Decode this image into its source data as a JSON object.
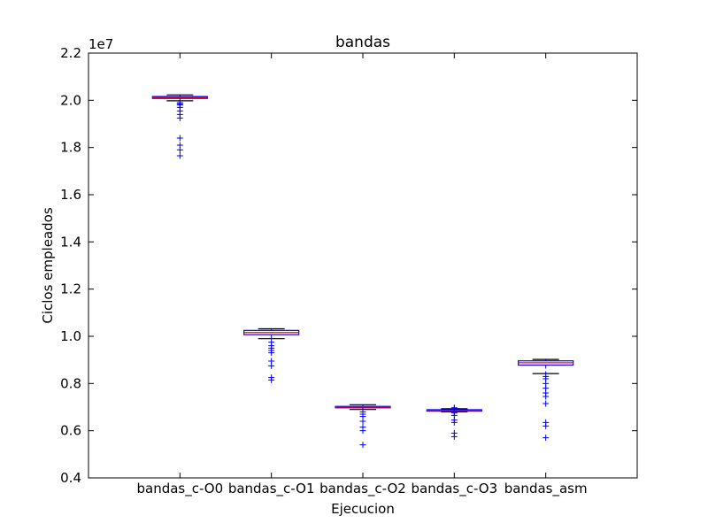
{
  "chart_data": {
    "type": "box",
    "title": "bandas",
    "xlabel": "Ejecucion",
    "ylabel": "Ciclos empleados",
    "y_offset_label": "1e7",
    "ylim": [
      0.4,
      2.2
    ],
    "yticks": [
      0.4,
      0.6,
      0.8,
      1.0,
      1.2,
      1.4,
      1.6,
      1.8,
      2.0,
      2.2
    ],
    "ytick_labels": [
      "0.4",
      "0.6",
      "0.8",
      "1.0",
      "1.2",
      "1.4",
      "1.6",
      "1.8",
      "2.0",
      "2.2"
    ],
    "grid": false,
    "colors": {
      "box": "#0000ff",
      "median": "#ff0000",
      "whisker": "#000000",
      "flier": "#0000ff"
    },
    "boxes": [
      {
        "label": "bandas_c-O0",
        "q1": 2.008,
        "median": 2.012,
        "q3": 2.016,
        "whisker_low": 1.998,
        "whisker_high": 2.023,
        "fliers": [
          1.99,
          1.985,
          1.98,
          1.97,
          1.955,
          1.94,
          1.925,
          1.84,
          1.81,
          1.79,
          1.765
        ]
      },
      {
        "label": "bandas_c-O1",
        "q1": 1.007,
        "median": 1.016,
        "q3": 1.025,
        "whisker_low": 0.99,
        "whisker_high": 1.032,
        "fliers": [
          0.975,
          0.96,
          0.95,
          0.94,
          0.93,
          0.895,
          0.875,
          0.825,
          0.815
        ]
      },
      {
        "label": "bandas_c-O2",
        "q1": 0.697,
        "median": 0.7,
        "q3": 0.703,
        "whisker_low": 0.69,
        "whisker_high": 0.71,
        "fliers": [
          0.68,
          0.67,
          0.66,
          0.64,
          0.615,
          0.6,
          0.54
        ]
      },
      {
        "label": "bandas_c-O3",
        "q1": 0.683,
        "median": 0.686,
        "q3": 0.689,
        "whisker_low": 0.68,
        "whisker_high": 0.693,
        "fliers": [
          0.697,
          0.695,
          0.675,
          0.665,
          0.645,
          0.635,
          0.59,
          0.575
        ]
      },
      {
        "label": "bandas_asm",
        "q1": 0.878,
        "median": 0.888,
        "q3": 0.896,
        "whisker_low": 0.842,
        "whisker_high": 0.902,
        "fliers": [
          0.83,
          0.82,
          0.8,
          0.78,
          0.76,
          0.745,
          0.715,
          0.635,
          0.62,
          0.57
        ]
      }
    ]
  }
}
